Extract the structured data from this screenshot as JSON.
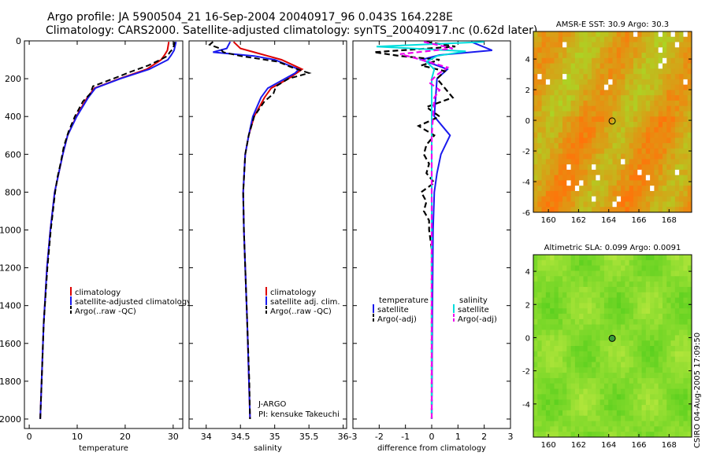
{
  "title_line1": "Argo profile: JA 5900504_21 16-Sep-2004 20040917_96 0.043S 164.228E",
  "title_line2": "Climatology: CARS2000. Satellite-adjusted climatology: synTS_20040917.nc (0.62d later)",
  "stamp": "CSIRO 04-Aug-2005 17:09:50",
  "colors": {
    "climatology": "#dd0000",
    "satellite": "#1a1aee",
    "argo": "#000000",
    "argo_sal_adj": "#ee00ee",
    "sat_sal": "#00dddd"
  },
  "chart_data": [
    {
      "type": "line",
      "id": "temperature",
      "xlabel": "temperature",
      "ylabel": "",
      "xlim": [
        -1,
        32
      ],
      "ylim": [
        2050,
        0
      ],
      "x_ticks": [
        0,
        10,
        20,
        30
      ],
      "y_ticks": [
        0,
        200,
        400,
        600,
        800,
        1000,
        1200,
        1400,
        1600,
        1800,
        2000
      ],
      "legend": {
        "position": "bottom-center",
        "entries": [
          "climatology",
          "satellite-adjusted climatology",
          "Argo(..raw -QC)"
        ]
      },
      "series": [
        {
          "name": "climatology",
          "depth": [
            5,
            50,
            75,
            100,
            150,
            200,
            250,
            300,
            400,
            500,
            600,
            800,
            1000,
            1200,
            1500,
            2000
          ],
          "values": [
            29.1,
            28.8,
            28.2,
            27.5,
            24.5,
            18.8,
            13.6,
            12.1,
            9.8,
            8.0,
            7.0,
            5.3,
            4.4,
            3.7,
            3.0,
            2.3
          ]
        },
        {
          "name": "satellite-adjusted climatology",
          "depth": [
            5,
            50,
            75,
            100,
            150,
            200,
            250,
            300,
            400,
            500,
            600,
            800,
            1000,
            1200,
            1500,
            2000
          ],
          "values": [
            30.6,
            30.2,
            29.6,
            28.9,
            25.0,
            19.0,
            13.8,
            12.3,
            9.9,
            8.0,
            7.0,
            5.3,
            4.4,
            3.7,
            3.0,
            2.3
          ]
        },
        {
          "name": "Argo(..raw -QC)",
          "depth": [
            5,
            20,
            40,
            60,
            80,
            100,
            130,
            160,
            200,
            240,
            280,
            320,
            400,
            480,
            560,
            640,
            720,
            800,
            1000,
            1200,
            1500,
            1800,
            2000
          ],
          "values": [
            30.3,
            30.2,
            30.0,
            29.3,
            28.8,
            27.3,
            24.8,
            21.5,
            17.5,
            13.3,
            12.7,
            11.2,
            9.5,
            8.2,
            7.2,
            6.6,
            5.9,
            5.4,
            4.5,
            3.8,
            3.0,
            2.6,
            2.3
          ]
        }
      ]
    },
    {
      "type": "line",
      "id": "salinity",
      "xlabel": "salinity",
      "xlim": [
        33.75,
        36.05
      ],
      "ylim": [
        2050,
        0
      ],
      "x_ticks": [
        34,
        34.5,
        35,
        35.5,
        36
      ],
      "legend": {
        "position": "bottom-center",
        "entries": [
          "climatology",
          "satellite adj. clim.",
          "Argo(..raw -QC)"
        ]
      },
      "annotations": [
        "J-ARGO",
        "PI: kensuke Takeuchi"
      ],
      "series": [
        {
          "name": "climatology",
          "depth": [
            5,
            40,
            60,
            80,
            100,
            150,
            200,
            250,
            300,
            400,
            500,
            600,
            800,
            1000,
            1500,
            2000
          ],
          "values": [
            34.4,
            34.5,
            34.7,
            34.9,
            35.1,
            35.4,
            35.2,
            34.95,
            34.85,
            34.7,
            34.62,
            34.57,
            34.54,
            34.55,
            34.6,
            34.64
          ]
        },
        {
          "name": "satellite adj. clim.",
          "depth": [
            5,
            40,
            60,
            80,
            100,
            150,
            170,
            200,
            250,
            300,
            400,
            500,
            600,
            800,
            1000,
            1500,
            2000
          ],
          "values": [
            34.35,
            34.3,
            34.1,
            34.7,
            35.0,
            35.35,
            35.3,
            35.15,
            34.9,
            34.8,
            34.68,
            34.62,
            34.57,
            34.54,
            34.55,
            34.6,
            34.64
          ]
        },
        {
          "name": "Argo(..raw -QC)",
          "depth": [
            5,
            20,
            40,
            60,
            80,
            110,
            140,
            170,
            200,
            240,
            280,
            320,
            400,
            500,
            600,
            800,
            1000,
            1200,
            1500,
            1800,
            2000
          ],
          "values": [
            34.1,
            34.05,
            34.2,
            34.25,
            34.5,
            35.05,
            35.25,
            35.5,
            35.2,
            35.02,
            34.98,
            34.85,
            34.7,
            34.62,
            34.57,
            34.54,
            34.55,
            34.57,
            34.6,
            34.63,
            34.64
          ]
        }
      ]
    },
    {
      "type": "line",
      "id": "difference",
      "xlabel": "difference from climatology",
      "xlim": [
        -3,
        3
      ],
      "ylim": [
        2050,
        0
      ],
      "x_ticks": [
        -3,
        -2,
        -1,
        0,
        1,
        2,
        3
      ],
      "legend": {
        "position": "bottom-center",
        "entries": [
          "temperature",
          "satellite",
          "Argo(-adj)",
          "salinity",
          "satellite",
          "Argo(-adj)"
        ]
      },
      "series": [
        {
          "name": "temperature satellite",
          "depth": [
            5,
            50,
            75,
            100,
            150,
            200,
            300,
            400,
            500,
            600,
            700,
            800,
            1000,
            1500,
            2000
          ],
          "values": [
            1.5,
            2.3,
            0.3,
            -0.4,
            0.6,
            0.2,
            0.15,
            0.1,
            0.7,
            0.35,
            0.2,
            0.1,
            0.05,
            0.02,
            0.0
          ]
        },
        {
          "name": "temperature Argo(-adj)",
          "depth": [
            5,
            30,
            60,
            80,
            100,
            130,
            160,
            200,
            250,
            300,
            350,
            400,
            450,
            500,
            550,
            600,
            650,
            700,
            750,
            800,
            850,
            900,
            950,
            1000,
            1100,
            1200,
            1400,
            1600,
            1800,
            2000
          ],
          "values": [
            -0.2,
            0.9,
            -2.2,
            -1.2,
            0.3,
            -0.4,
            0.5,
            0.2,
            0.5,
            0.8,
            -0.2,
            0.3,
            -0.5,
            0.1,
            -0.2,
            -0.3,
            -0.1,
            -0.2,
            0.1,
            -0.4,
            -0.2,
            -0.3,
            -0.1,
            -0.1,
            0.0,
            0.0,
            0.0,
            0.0,
            0.0,
            0.0
          ]
        },
        {
          "name": "salinity satellite",
          "depth": [
            5,
            30,
            55,
            80,
            110,
            150,
            200,
            300,
            500,
            1000,
            2000
          ],
          "values": [
            2.0,
            -2.1,
            1.3,
            0.2,
            -0.2,
            0.1,
            0.0,
            0.0,
            0.0,
            0.0,
            0.0
          ]
        },
        {
          "name": "salinity Argo(-adj)",
          "depth": [
            5,
            40,
            70,
            100,
            140,
            180,
            220,
            260,
            300,
            400,
            500,
            700,
            900,
            1100,
            1300,
            1500,
            2000
          ],
          "values": [
            -0.3,
            0.8,
            -1.2,
            -0.4,
            0.6,
            0.2,
            -0.1,
            0.3,
            0.1,
            0.05,
            0.0,
            0.0,
            0.0,
            0.0,
            0.0,
            0.0,
            0.0
          ]
        }
      ]
    },
    {
      "type": "heatmap",
      "id": "sst",
      "title": "AMSR-E SST: 30.9 Argo: 30.3",
      "xlim": [
        159,
        169.5
      ],
      "ylim": [
        -6,
        5.8
      ],
      "x_ticks": [
        160,
        162,
        164,
        166,
        168
      ],
      "y_ticks": [
        -6,
        -4,
        -2,
        0,
        2,
        4
      ],
      "marker": {
        "lon": 164.228,
        "lat": -0.043
      }
    },
    {
      "type": "heatmap",
      "id": "sla",
      "title": "Altimetric SLA: 0.099 Argo: 0.0091",
      "xlim": [
        159,
        169.5
      ],
      "ylim": [
        -6,
        5
      ],
      "x_ticks": [
        160,
        162,
        164,
        166,
        168
      ],
      "y_ticks": [
        -4,
        -2,
        0,
        2,
        4
      ],
      "marker": {
        "lon": 164.228,
        "lat": -0.043
      }
    }
  ]
}
